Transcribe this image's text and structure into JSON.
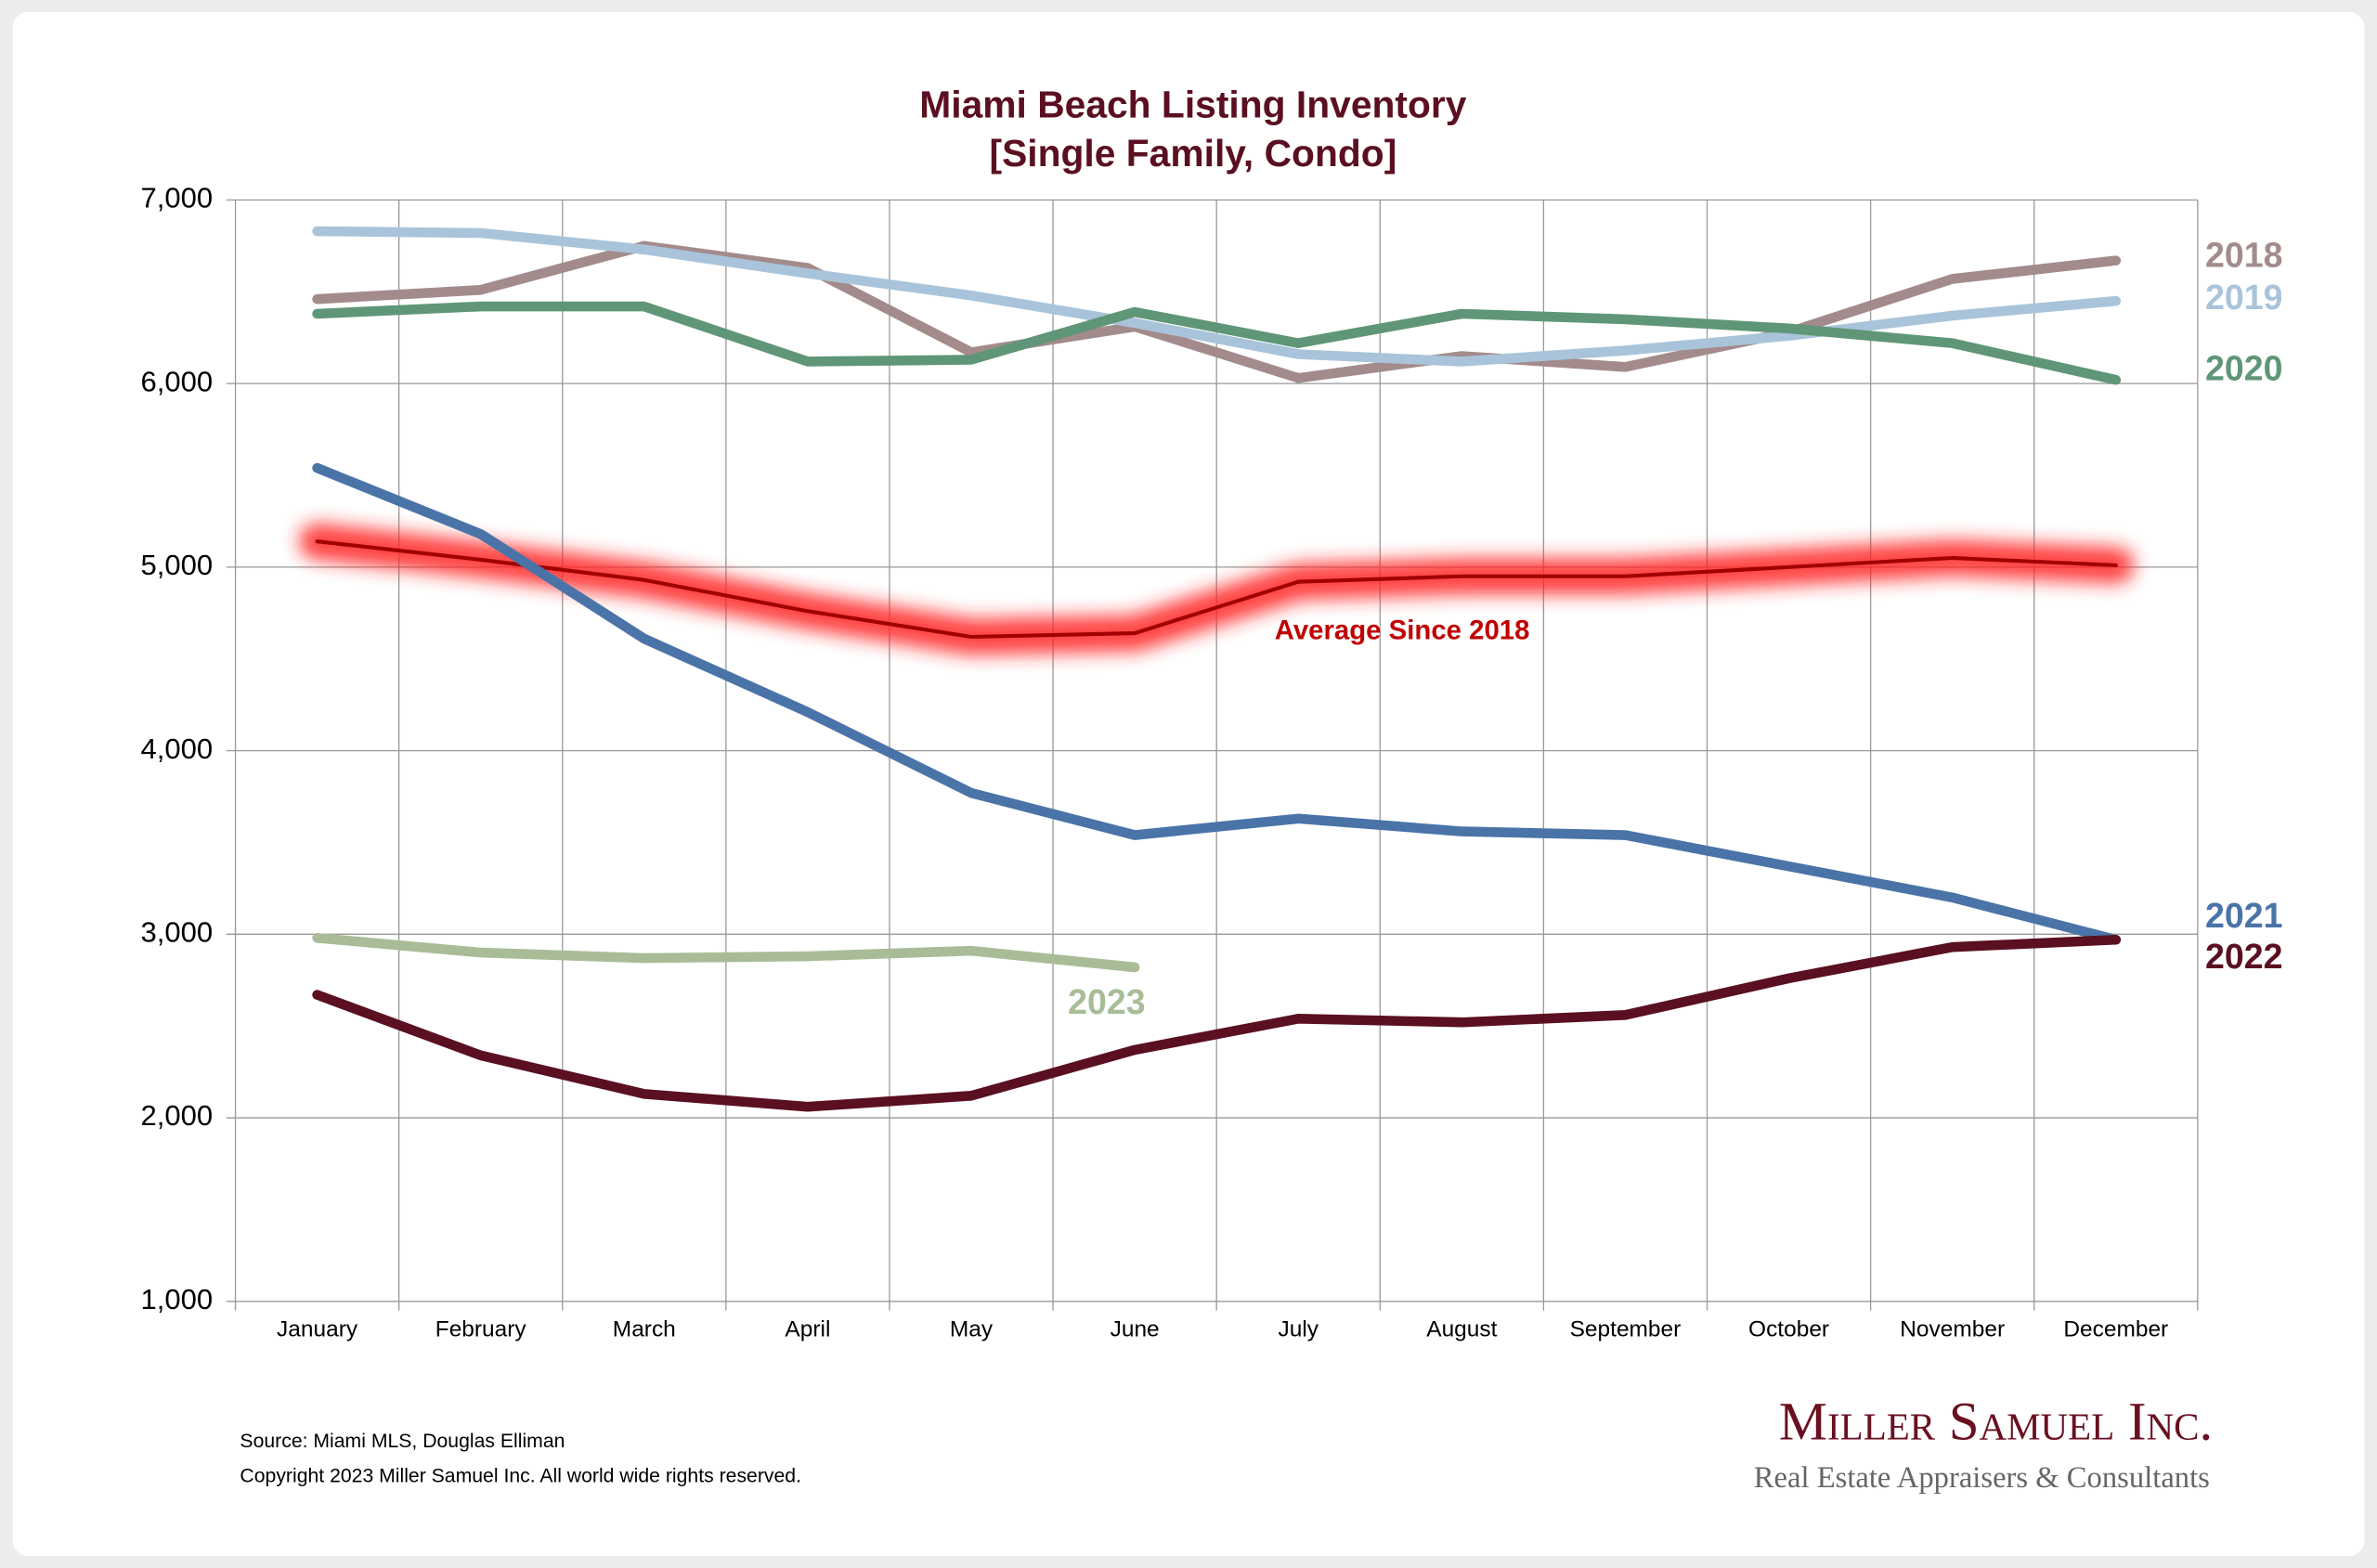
{
  "chart_data": {
    "type": "line",
    "title": "Miami Beach Listing Inventory",
    "subtitle": "[Single Family, Condo]",
    "categories": [
      "January",
      "February",
      "March",
      "April",
      "May",
      "June",
      "July",
      "August",
      "September",
      "October",
      "November",
      "December"
    ],
    "ylim": [
      1000,
      7000
    ],
    "yticks": [
      {
        "value": 1000,
        "label": "1,000"
      },
      {
        "value": 2000,
        "label": "2,000"
      },
      {
        "value": 3000,
        "label": "3,000"
      },
      {
        "value": 4000,
        "label": "4,000"
      },
      {
        "value": 5000,
        "label": "5,000"
      },
      {
        "value": 6000,
        "label": "6,000"
      },
      {
        "value": 7000,
        "label": "7,000"
      }
    ],
    "grid": true,
    "series": [
      {
        "name": "2018",
        "color": "#a38b8c",
        "values": [
          6460,
          6510,
          6750,
          6630,
          6170,
          6310,
          6030,
          6150,
          6090,
          6280,
          6570,
          6670
        ]
      },
      {
        "name": "2019",
        "color": "#a9c4da",
        "values": [
          6830,
          6820,
          6730,
          6600,
          6480,
          6330,
          6160,
          6120,
          6180,
          6260,
          6370,
          6450
        ]
      },
      {
        "name": "2020",
        "color": "#5f9677",
        "values": [
          6380,
          6420,
          6420,
          6120,
          6130,
          6390,
          6220,
          6380,
          6350,
          6300,
          6220,
          6020
        ]
      },
      {
        "name": "2021",
        "color": "#4a74a8",
        "values": [
          5540,
          5180,
          4610,
          4210,
          3770,
          3540,
          3630,
          3560,
          3540,
          3370,
          3200,
          2970
        ]
      },
      {
        "name": "2022",
        "color": "#5a1020",
        "values": [
          2670,
          2340,
          2130,
          2060,
          2120,
          2370,
          2540,
          2520,
          2560,
          2760,
          2930,
          2970
        ]
      },
      {
        "name": "2023",
        "color": "#a8bd97",
        "values": [
          2980,
          2900,
          2870,
          2880,
          2910,
          2820,
          null,
          null,
          null,
          null,
          null,
          null
        ]
      },
      {
        "name": "Average  Since 2018",
        "color": "#c00000",
        "glow": true,
        "values": [
          5140,
          5040,
          4930,
          4760,
          4620,
          4640,
          4920,
          4950,
          4950,
          5000,
          5050,
          5010
        ]
      }
    ],
    "source": "Source: Miami MLS, Douglas Elliman",
    "copyright": "Copyright 2023 Miller Samuel Inc.  All world wide rights reserved.",
    "logo": {
      "name": "Miller Samuel Inc.",
      "tagline": "Real Estate Appraisers & Consultants"
    }
  }
}
